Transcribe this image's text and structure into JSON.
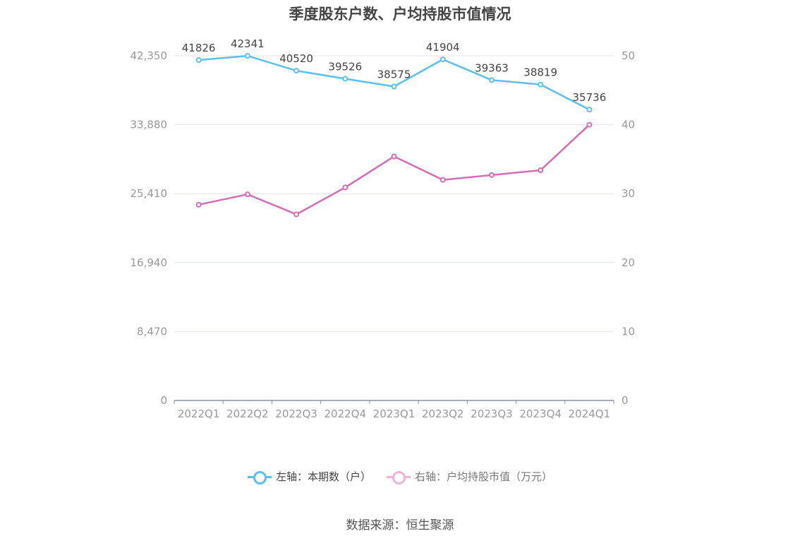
{
  "title": "季度股东户数、户均持股市值情况",
  "source": "数据来源：恒生聚源",
  "legend": {
    "left_series": "左轴：本期数（户）",
    "right_series": "右轴：户均持股市值（万元）"
  },
  "colors": {
    "left_series": "#5bbff0",
    "right_series": "#d66cb4",
    "legend_right": "#efb4d8",
    "grid": "#e0e3ef",
    "axis": "#8c8fa6",
    "tick_text": "#999999",
    "label_text": "#444444"
  },
  "chart_data": {
    "type": "line",
    "categories": [
      "2022Q1",
      "2022Q2",
      "2022Q3",
      "2022Q4",
      "2023Q1",
      "2023Q2",
      "2023Q3",
      "2023Q4",
      "2024Q1"
    ],
    "left_axis": {
      "min": 0,
      "max": 42350,
      "ticks": [
        "0",
        "8,470",
        "16,940",
        "25,410",
        "33,880",
        "42,350"
      ]
    },
    "right_axis": {
      "min": 0,
      "max": 50,
      "ticks": [
        "0",
        "10",
        "20",
        "30",
        "40",
        "50"
      ]
    },
    "series": [
      {
        "name": "左轴：本期数（户）",
        "axis": "left",
        "values": [
          41826,
          42341,
          40520,
          39526,
          38575,
          41904,
          39363,
          38819,
          35736
        ],
        "labels": [
          "41826",
          "42341",
          "40520",
          "39526",
          "38575",
          "41904",
          "39363",
          "38819",
          "35736"
        ]
      },
      {
        "name": "右轴：户均持股市值（万元）",
        "axis": "right",
        "values": [
          28.4,
          29.9,
          27.0,
          30.9,
          35.4,
          32.0,
          32.7,
          33.4,
          40.0
        ]
      }
    ],
    "grid": true,
    "legend_position": "bottom"
  }
}
